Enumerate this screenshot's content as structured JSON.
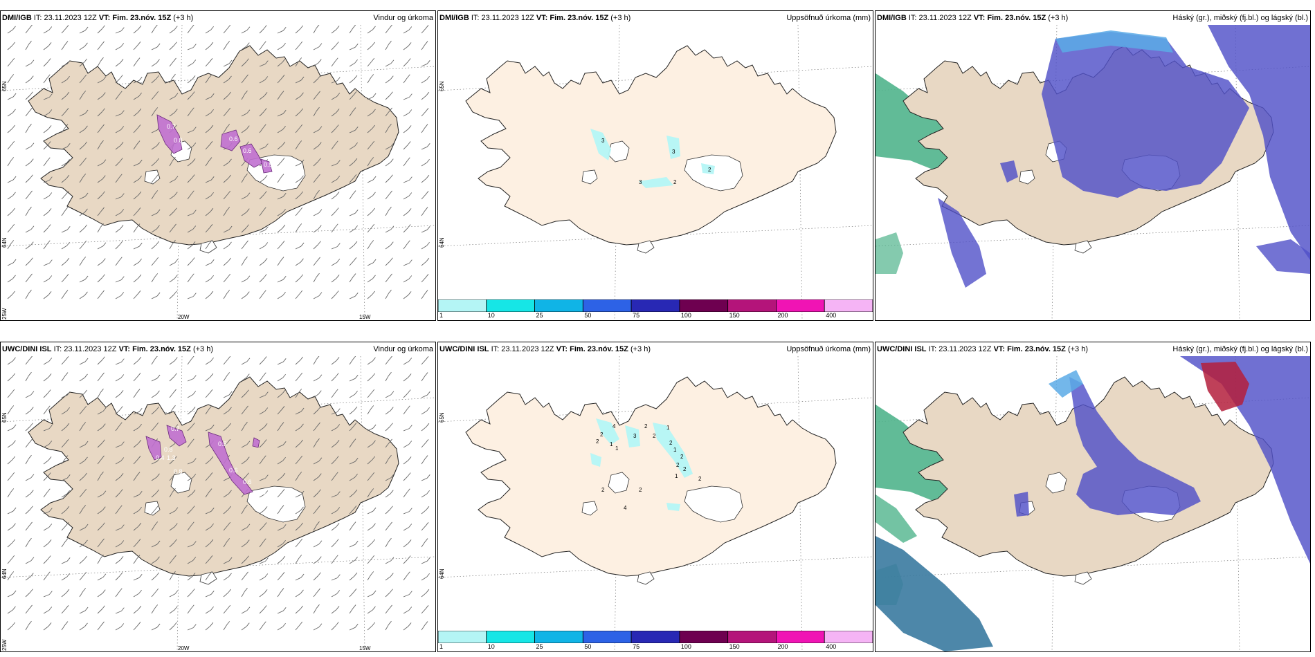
{
  "panels": [
    {
      "model": "DMI/IGB",
      "it_label": "IT:",
      "it_value": "23.11.2023 12Z",
      "vt_label": "VT:",
      "vt_value": "Fim. 23.nóv. 15Z",
      "lead": "(+3 h)",
      "title": "Vindur og úrkoma",
      "grid_labels": {
        "lat65": "65N",
        "lat64": "64N",
        "lon25": "25W",
        "lon20": "20W",
        "lon15": "15W"
      },
      "precip_labels": [
        "0.7",
        "0.8",
        "0.6",
        "0.6",
        "0.9"
      ]
    },
    {
      "model": "DMI/IGB",
      "it_label": "IT:",
      "it_value": "23.11.2023 12Z",
      "vt_label": "VT:",
      "vt_value": "Fim. 23.nóv. 15Z",
      "lead": "(+3 h)",
      "title": "Uppsöfnuð úrkoma (mm)",
      "grid_labels": {
        "lat65": "65N",
        "lat64": "64N"
      },
      "accum_labels": [
        "3",
        "3",
        "3",
        "2",
        "2"
      ]
    },
    {
      "model": "DMI/IGB",
      "it_label": "IT:",
      "it_value": "23.11.2023 12Z",
      "vt_label": "VT:",
      "vt_value": "Fim. 23.nóv. 15Z",
      "lead": "(+3 h)",
      "title": "Háský (gr.), miðský (fj.bl.) og lágský (bl.)"
    },
    {
      "model": "UWC/DINI ISL",
      "it_label": "IT:",
      "it_value": "23.11.2023 12Z",
      "vt_label": "VT:",
      "vt_value": "Fim. 23.nóv. 15Z",
      "lead": "(+3 h)",
      "title": "Vindur og úrkoma",
      "grid_labels": {
        "lat65": "65N",
        "lat64": "64N",
        "lon25": "25W",
        "lon20": "20W",
        "lon15": "15W"
      },
      "precip_labels": [
        "1.3",
        "0.8",
        "0.6",
        "0.6",
        "1.0",
        "0.7",
        "0.8",
        "0.4",
        "0.5"
      ]
    },
    {
      "model": "UWC/DINI ISL",
      "it_label": "IT:",
      "it_value": "23.11.2023 12Z",
      "vt_label": "VT:",
      "vt_value": "Fim. 23.nóv. 15Z",
      "lead": "(+3 h)",
      "title": "Uppsöfnuð úrkoma (mm)",
      "grid_labels": {
        "lat65": "65N",
        "lat64": "64N"
      },
      "accum_labels": [
        "4",
        "2",
        "2",
        "1",
        "1",
        "2",
        "2",
        "3",
        "1",
        "2",
        "1",
        "2",
        "2",
        "2",
        "1",
        "2",
        "2",
        "2",
        "4"
      ]
    },
    {
      "model": "UWC/DINI ISL",
      "it_label": "IT:",
      "it_value": "23.11.2023 12Z",
      "vt_label": "VT:",
      "vt_value": "Fim. 23.nóv. 15Z",
      "lead": "(+3 h)",
      "title": "Háský (gr.), miðský (fj.bl.) og lágský (bl.)"
    }
  ],
  "colorbar": {
    "ticks": [
      "1",
      "10",
      "25",
      "50",
      "75",
      "100",
      "150",
      "200",
      "400"
    ],
    "colors": [
      "#b4f5f5",
      "#16e6e6",
      "#10b4e6",
      "#2d62e6",
      "#2828b4",
      "#6e0050",
      "#b4147a",
      "#f014b4",
      "#f5b4f5"
    ]
  },
  "colors": {
    "land": "#e8d8c4",
    "land_plain": "#fdf0e2",
    "precip": "#c070d0",
    "accum": "#b4f5f5",
    "low_cloud": "#5050c8",
    "mid_cloud": "#5aaae6",
    "high_cloud": "#50b48c",
    "high_cloud_red": "#b41e3c"
  }
}
